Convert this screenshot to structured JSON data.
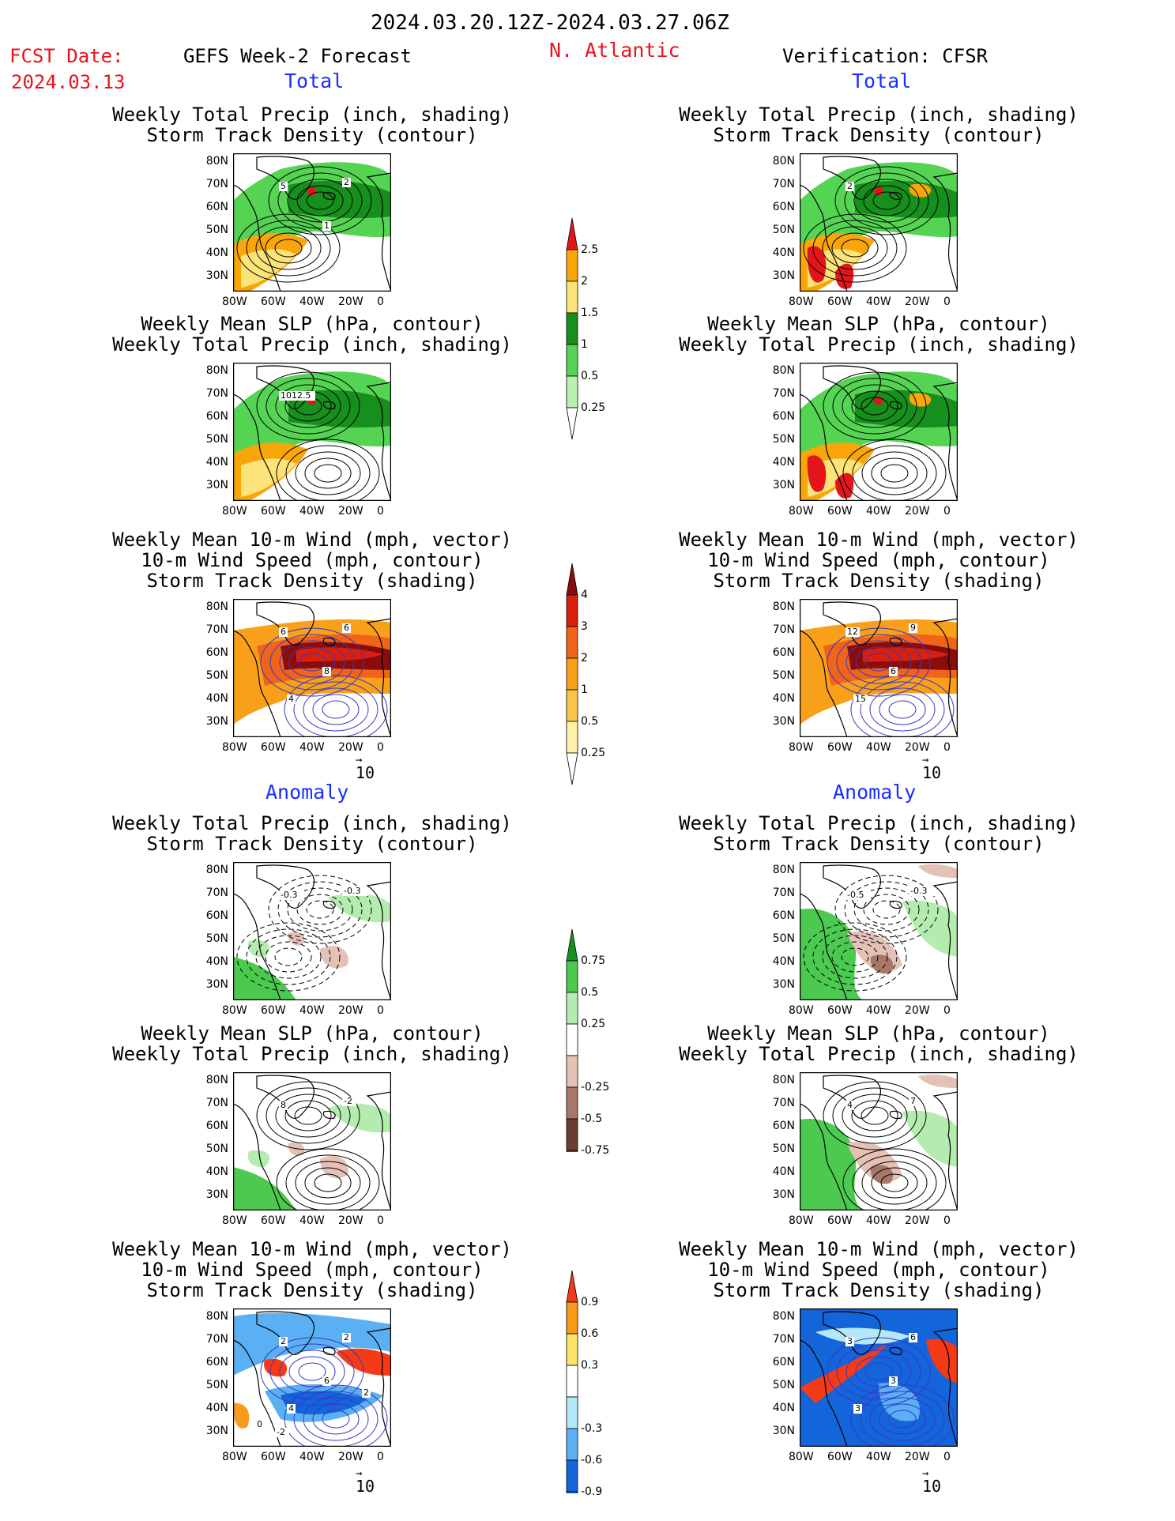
{
  "header": {
    "period": "2024.03.20.12Z-2024.03.27.06Z",
    "fcst_label": "FCST Date:",
    "fcst_date": "2024.03.13",
    "model_title": "GEFS Week-2 Forecast",
    "region": "N. Atlantic",
    "verification": "Verification: CFSR"
  },
  "sections": {
    "total": "Total",
    "anomaly": "Anomaly"
  },
  "panel_titles": {
    "precip_storm": [
      "Weekly Total Precip (inch, shading)",
      "Storm Track Density (contour)"
    ],
    "slp_precip": [
      "Weekly Mean SLP (hPa, contour)",
      "Weekly Total Precip (inch, shading)"
    ],
    "wind_storm": [
      "Weekly Mean 10-m Wind (mph, vector)",
      "10-m Wind Speed (mph, contour)",
      "Storm Track Density (shading)"
    ]
  },
  "axes": {
    "lat_ticks": [
      "80N",
      "70N",
      "60N",
      "50N",
      "40N",
      "30N"
    ],
    "lon_ticks": [
      "80W",
      "60W",
      "40W",
      "20W",
      "0"
    ]
  },
  "vector_ref": "10",
  "contour_labels": {
    "fc_total_precip": [
      "5",
      "2",
      "1"
    ],
    "fc_total_slp": [
      "1012.5"
    ],
    "fc_total_wind": [
      "6",
      "6",
      "8",
      "4"
    ],
    "vf_total_precip": [
      "2"
    ],
    "vf_total_wind": [
      "12",
      "9",
      "6",
      "15"
    ],
    "fc_anom_precip": [
      "-0.3",
      "-0.3"
    ],
    "vf_anom_precip": [
      "-0.5",
      "-0.3"
    ],
    "fc_anom_slp": [
      "8",
      "-2"
    ],
    "vf_anom_slp": [
      "4",
      "7"
    ],
    "fc_anom_wind": [
      "2",
      "2",
      "6",
      "4",
      "2",
      "0",
      "-2"
    ],
    "vf_anom_wind": [
      "3",
      "6",
      "3",
      "3"
    ]
  },
  "colorbars": {
    "total_precip": {
      "labels": [
        "2.5",
        "2",
        "1.5",
        "1",
        "0.5",
        "0.25"
      ],
      "colors": [
        "#e3151b",
        "#f8a60a",
        "#fde47a",
        "#168f1c",
        "#55d454",
        "#b8f0b0"
      ]
    },
    "total_storm": {
      "labels": [
        "4",
        "3",
        "2",
        "1",
        "0.5",
        "0.25"
      ],
      "colors": [
        "#8a0d0d",
        "#d8200e",
        "#f0641a",
        "#f8a01a",
        "#fac44a",
        "#fdf0a8"
      ]
    },
    "anom_precip": {
      "labels": [
        "0.75",
        "0.5",
        "0.25",
        "-0.25",
        "-0.5",
        "-0.75"
      ],
      "colors": [
        "#17911f",
        "#4cc94f",
        "#b4ecaf",
        "#ffffff",
        "#e4c0b5",
        "#a8776a",
        "#6a3e32"
      ]
    },
    "anom_storm": {
      "labels": [
        "0.9",
        "0.6",
        "0.3",
        "-0.3",
        "-0.6",
        "-0.9"
      ],
      "colors": [
        "#f43a16",
        "#f89a1a",
        "#fde366",
        "#ffffff",
        "#b4e8f8",
        "#5ab0f2",
        "#1465da"
      ]
    }
  },
  "colors": {
    "title_red": "#e8141c",
    "section_blue": "#1a2dff"
  }
}
